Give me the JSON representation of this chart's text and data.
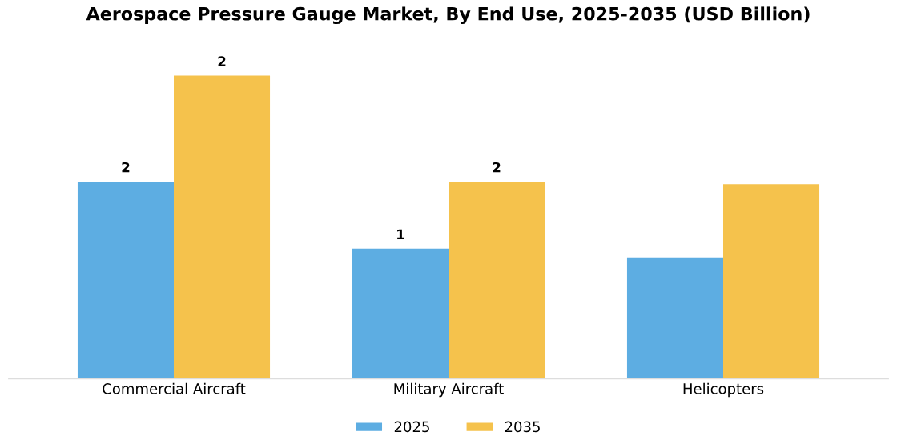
{
  "chart_data": {
    "type": "bar",
    "title": "Aerospace Pressure Gauge Market, By End Use, 2025-2035 (USD Billion)",
    "categories": [
      "Commercial Aircraft",
      "Military Aircraft",
      "Helicopters"
    ],
    "series": [
      {
        "name": "2025",
        "color": "#5dade2",
        "values": [
          1.56,
          1.03,
          0.96
        ],
        "value_labels": [
          "2",
          "1",
          null
        ]
      },
      {
        "name": "2035",
        "color": "#f5c24c",
        "values": [
          2.4,
          1.56,
          1.54
        ],
        "value_labels": [
          "2",
          "2",
          null
        ]
      }
    ],
    "legend": "bottom",
    "grid": false
  }
}
